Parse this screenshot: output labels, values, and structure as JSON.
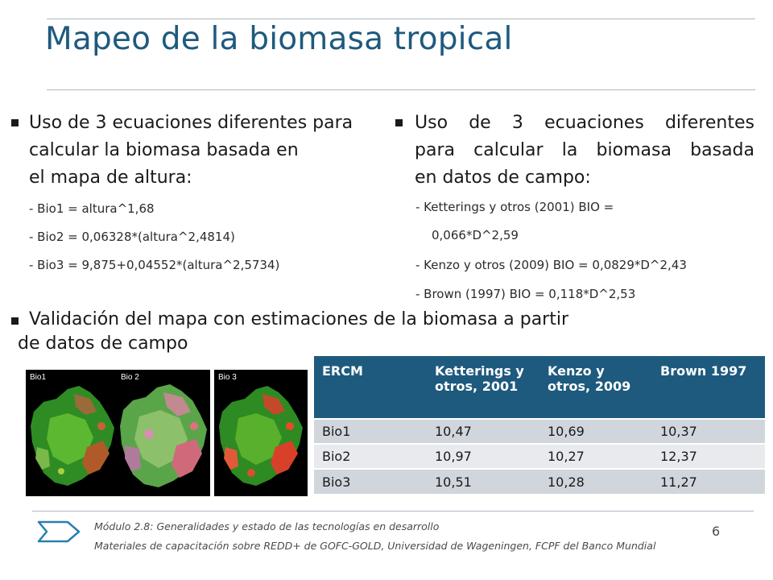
{
  "slide": {
    "title": "Mapeo de la biomasa tropical"
  },
  "left_bullet": {
    "lines": [
      "Uso de 3 ecuaciones diferentes para",
      "calcular la biomasa basada en",
      "el mapa de altura:"
    ],
    "formulas": [
      "- Bio1 = altura^1,68",
      "- Bio2 = 0,06328*(altura^2,4814)",
      "- Bio3 = 9,875+0,04552*(altura^2,5734)"
    ]
  },
  "right_bullet": {
    "lines": [
      "Uso de 3 ecuaciones diferentes",
      "para calcular la biomasa basada",
      "en datos de campo:"
    ],
    "formulas": [
      "- Ketterings y otros (2001) BIO =",
      "0,066*D^2,59",
      "- Kenzo y otros (2009) BIO = 0,0829*D^2,43",
      "- Brown (1997) BIO = 0,118*D^2,53"
    ]
  },
  "validation_bullet": {
    "lines": [
      "Validación del mapa con estimaciones de la biomasa a partir",
      "de datos de campo"
    ]
  },
  "maps": {
    "labels": [
      "Bio1",
      "Bio 2",
      "Bio 3"
    ]
  },
  "table": {
    "headers": [
      "ERCM",
      "Ketterings y otros, 2001",
      "Kenzo y otros, 2009",
      "Brown 1997"
    ],
    "rows": [
      [
        "Bio1",
        "10,47",
        "10,69",
        "10,37"
      ],
      [
        "Bio2",
        "10,97",
        "10,27",
        "12,37"
      ],
      [
        "Bio3",
        "10,51",
        "10,28",
        "11,27"
      ]
    ],
    "header_color": "#1e5a7e"
  },
  "footer": {
    "module": "Módulo 2.8: Generalidades y estado de las tecnologías en desarrollo",
    "materials": "Materiales de capacitación sobre REDD+ de GOFC-GOLD,  Universidad de Wageningen, FCPF del Banco Mundial",
    "page": "6"
  },
  "colors": {
    "title": "#1e5a7e",
    "accent": "#1e5a7e"
  }
}
